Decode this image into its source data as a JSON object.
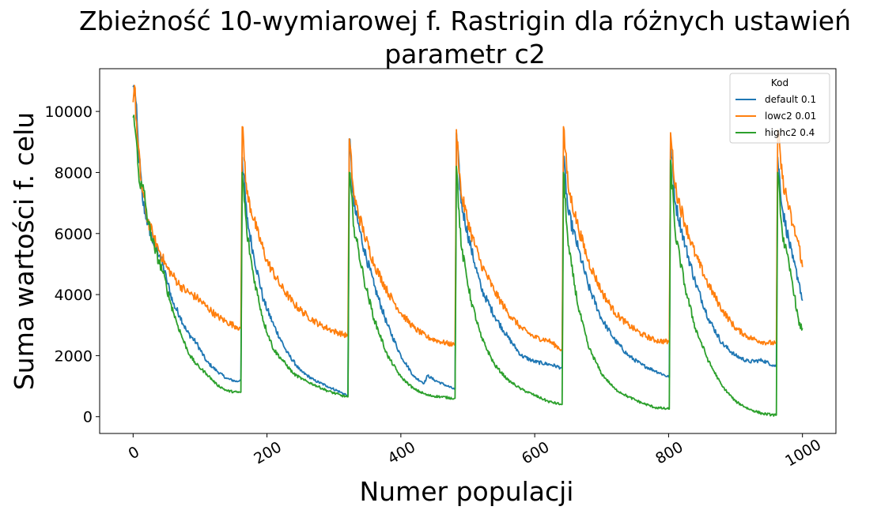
{
  "chart_data": {
    "type": "line",
    "title": "Zbieżność 10-wymiarowej f. Rastrigin dla różnych ustawień",
    "title_line2": "parametr c2",
    "xlabel": "Numer populacji",
    "ylabel": "Suma wartości f. celu",
    "xlim": [
      -50,
      1050
    ],
    "ylim": [
      -550,
      11400
    ],
    "xticks": [
      0,
      200,
      400,
      600,
      800,
      1000
    ],
    "yticks": [
      0,
      2000,
      4000,
      6000,
      8000,
      10000
    ],
    "grid": false,
    "legend": {
      "title": "Kod",
      "placement": "top-right"
    },
    "series": [
      {
        "name": "default 0.1",
        "color": "#1f77b4",
        "points": [
          [
            0,
            10800
          ],
          [
            3,
            10600
          ],
          [
            8,
            8800
          ],
          [
            14,
            7100
          ],
          [
            20,
            6500
          ],
          [
            30,
            5700
          ],
          [
            40,
            5300
          ],
          [
            50,
            4500
          ],
          [
            60,
            3700
          ],
          [
            70,
            3300
          ],
          [
            80,
            2800
          ],
          [
            95,
            2400
          ],
          [
            110,
            1800
          ],
          [
            125,
            1500
          ],
          [
            140,
            1250
          ],
          [
            155,
            1150
          ],
          [
            160,
            1200
          ],
          [
            161,
            1200
          ],
          [
            163,
            8500
          ],
          [
            170,
            6500
          ],
          [
            180,
            5300
          ],
          [
            195,
            3800
          ],
          [
            210,
            3000
          ],
          [
            230,
            2100
          ],
          [
            250,
            1500
          ],
          [
            270,
            1200
          ],
          [
            290,
            1000
          ],
          [
            310,
            800
          ],
          [
            320,
            700
          ],
          [
            321,
            700
          ],
          [
            323,
            9100
          ],
          [
            330,
            6900
          ],
          [
            345,
            5500
          ],
          [
            360,
            4300
          ],
          [
            380,
            3000
          ],
          [
            400,
            2000
          ],
          [
            420,
            1300
          ],
          [
            435,
            1100
          ],
          [
            440,
            1350
          ],
          [
            450,
            1200
          ],
          [
            470,
            1000
          ],
          [
            480,
            900
          ],
          [
            481,
            900
          ],
          [
            483,
            9300
          ],
          [
            490,
            7000
          ],
          [
            505,
            5500
          ],
          [
            520,
            4200
          ],
          [
            540,
            3300
          ],
          [
            560,
            2600
          ],
          [
            580,
            2000
          ],
          [
            600,
            1800
          ],
          [
            625,
            1700
          ],
          [
            640,
            1600
          ],
          [
            641,
            1600
          ],
          [
            643,
            8500
          ],
          [
            650,
            6700
          ],
          [
            665,
            5500
          ],
          [
            680,
            4300
          ],
          [
            700,
            3200
          ],
          [
            720,
            2500
          ],
          [
            740,
            2000
          ],
          [
            760,
            1700
          ],
          [
            780,
            1500
          ],
          [
            800,
            1300
          ],
          [
            801,
            1300
          ],
          [
            803,
            9000
          ],
          [
            810,
            7000
          ],
          [
            825,
            5600
          ],
          [
            840,
            4400
          ],
          [
            860,
            3200
          ],
          [
            880,
            2400
          ],
          [
            900,
            2000
          ],
          [
            920,
            1800
          ],
          [
            940,
            1850
          ],
          [
            960,
            1650
          ],
          [
            961,
            1650
          ],
          [
            963,
            8500
          ],
          [
            970,
            6800
          ],
          [
            985,
            5200
          ],
          [
            995,
            4400
          ],
          [
            1000,
            3800
          ]
        ]
      },
      {
        "name": "lowc2 0.01",
        "color": "#ff7f0e",
        "points": [
          [
            0,
            10300
          ],
          [
            2,
            10850
          ],
          [
            6,
            9200
          ],
          [
            12,
            7700
          ],
          [
            20,
            6600
          ],
          [
            30,
            5900
          ],
          [
            40,
            5400
          ],
          [
            50,
            4900
          ],
          [
            60,
            4600
          ],
          [
            70,
            4300
          ],
          [
            80,
            4100
          ],
          [
            95,
            3900
          ],
          [
            110,
            3600
          ],
          [
            125,
            3300
          ],
          [
            140,
            3100
          ],
          [
            155,
            2950
          ],
          [
            160,
            2900
          ],
          [
            161,
            2900
          ],
          [
            163,
            9500
          ],
          [
            170,
            7300
          ],
          [
            185,
            6100
          ],
          [
            200,
            5100
          ],
          [
            220,
            4300
          ],
          [
            240,
            3700
          ],
          [
            260,
            3300
          ],
          [
            280,
            3000
          ],
          [
            300,
            2800
          ],
          [
            320,
            2650
          ],
          [
            321,
            2650
          ],
          [
            323,
            9100
          ],
          [
            330,
            7200
          ],
          [
            345,
            6000
          ],
          [
            360,
            5000
          ],
          [
            380,
            4100
          ],
          [
            400,
            3400
          ],
          [
            420,
            2900
          ],
          [
            440,
            2600
          ],
          [
            460,
            2450
          ],
          [
            480,
            2350
          ],
          [
            481,
            2350
          ],
          [
            483,
            9400
          ],
          [
            490,
            7300
          ],
          [
            505,
            6000
          ],
          [
            520,
            5000
          ],
          [
            540,
            4100
          ],
          [
            560,
            3400
          ],
          [
            580,
            2900
          ],
          [
            600,
            2600
          ],
          [
            620,
            2500
          ],
          [
            640,
            2200
          ],
          [
            641,
            2200
          ],
          [
            643,
            9500
          ],
          [
            650,
            7500
          ],
          [
            665,
            6200
          ],
          [
            680,
            5100
          ],
          [
            700,
            4100
          ],
          [
            720,
            3400
          ],
          [
            740,
            3000
          ],
          [
            760,
            2700
          ],
          [
            780,
            2500
          ],
          [
            800,
            2450
          ],
          [
            801,
            2450
          ],
          [
            803,
            9300
          ],
          [
            810,
            7500
          ],
          [
            825,
            6300
          ],
          [
            840,
            5300
          ],
          [
            860,
            4300
          ],
          [
            880,
            3500
          ],
          [
            900,
            2900
          ],
          [
            920,
            2600
          ],
          [
            940,
            2450
          ],
          [
            960,
            2400
          ],
          [
            961,
            2400
          ],
          [
            963,
            9400
          ],
          [
            970,
            7800
          ],
          [
            985,
            6300
          ],
          [
            995,
            5600
          ],
          [
            1000,
            4900
          ]
        ]
      },
      {
        "name": "highc2 0.4",
        "color": "#2ca02c",
        "points": [
          [
            0,
            9800
          ],
          [
            3,
            9400
          ],
          [
            6,
            8800
          ],
          [
            10,
            7600
          ],
          [
            16,
            7400
          ],
          [
            22,
            6400
          ],
          [
            32,
            5500
          ],
          [
            45,
            4700
          ],
          [
            55,
            3800
          ],
          [
            65,
            3100
          ],
          [
            75,
            2500
          ],
          [
            85,
            2000
          ],
          [
            95,
            1700
          ],
          [
            110,
            1400
          ],
          [
            125,
            1050
          ],
          [
            140,
            850
          ],
          [
            155,
            800
          ],
          [
            160,
            800
          ],
          [
            161,
            800
          ],
          [
            163,
            8000
          ],
          [
            170,
            6000
          ],
          [
            180,
            4600
          ],
          [
            195,
            3100
          ],
          [
            210,
            2200
          ],
          [
            225,
            1800
          ],
          [
            240,
            1400
          ],
          [
            255,
            1200
          ],
          [
            270,
            1050
          ],
          [
            290,
            850
          ],
          [
            310,
            700
          ],
          [
            320,
            650
          ],
          [
            321,
            650
          ],
          [
            323,
            8000
          ],
          [
            330,
            6200
          ],
          [
            345,
            4500
          ],
          [
            360,
            3200
          ],
          [
            380,
            2000
          ],
          [
            400,
            1300
          ],
          [
            420,
            900
          ],
          [
            440,
            700
          ],
          [
            460,
            650
          ],
          [
            480,
            600
          ],
          [
            481,
            600
          ],
          [
            483,
            8200
          ],
          [
            490,
            5600
          ],
          [
            505,
            3800
          ],
          [
            520,
            2600
          ],
          [
            540,
            1700
          ],
          [
            560,
            1200
          ],
          [
            580,
            900
          ],
          [
            600,
            700
          ],
          [
            620,
            500
          ],
          [
            640,
            400
          ],
          [
            641,
            400
          ],
          [
            643,
            8000
          ],
          [
            650,
            5600
          ],
          [
            665,
            3600
          ],
          [
            680,
            2300
          ],
          [
            700,
            1400
          ],
          [
            720,
            900
          ],
          [
            740,
            650
          ],
          [
            760,
            450
          ],
          [
            780,
            300
          ],
          [
            800,
            250
          ],
          [
            801,
            250
          ],
          [
            803,
            8400
          ],
          [
            810,
            6000
          ],
          [
            825,
            4200
          ],
          [
            840,
            2900
          ],
          [
            860,
            1800
          ],
          [
            880,
            1000
          ],
          [
            900,
            500
          ],
          [
            920,
            250
          ],
          [
            940,
            100
          ],
          [
            960,
            50
          ],
          [
            961,
            50
          ],
          [
            963,
            8000
          ],
          [
            970,
            6000
          ],
          [
            985,
            4400
          ],
          [
            995,
            3000
          ],
          [
            1000,
            2900
          ]
        ]
      }
    ]
  }
}
